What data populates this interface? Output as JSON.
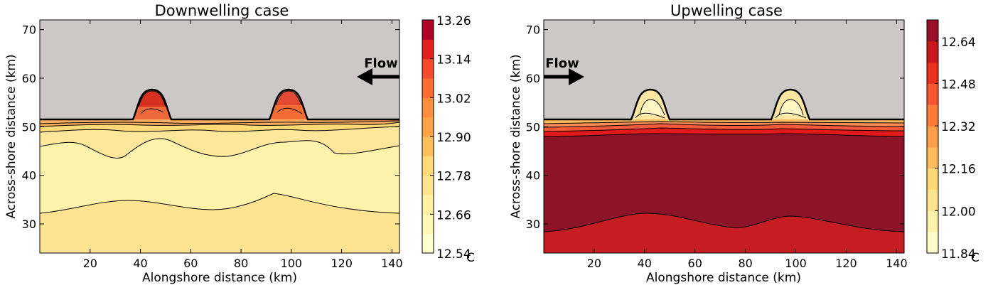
{
  "chart_data": [
    {
      "type": "contour",
      "title": "Downwelling case",
      "xlabel": "Alongshore distance (km)",
      "ylabel": "Across-shore distance (km)",
      "xlim": [
        0,
        143
      ],
      "ylim": [
        24,
        72
      ],
      "xticks": [
        20,
        40,
        60,
        80,
        100,
        120,
        140
      ],
      "yticks": [
        30,
        40,
        50,
        60,
        70
      ],
      "colorbar": {
        "ticks": [
          "12.54",
          "12.66",
          "12.78",
          "12.90",
          "13.02",
          "13.14",
          "13.26"
        ],
        "min": 12.54,
        "max": 13.26,
        "levels": 12,
        "unit": "C"
      },
      "annotation": {
        "text": "Flow",
        "direction": "left"
      },
      "land_color": "#cbc8c7",
      "coastline_y": 51.2,
      "bumps": [
        {
          "center": 43,
          "height": 57.5
        },
        {
          "center": 100,
          "height": 57.5
        }
      ]
    },
    {
      "type": "contour",
      "title": "Upwelling case",
      "xlabel": "Alongshore distance (km)",
      "ylabel": "Across-shore distance (km)",
      "xlim": [
        0,
        143
      ],
      "ylim": [
        24,
        72
      ],
      "xticks": [
        20,
        40,
        60,
        80,
        100,
        120,
        140
      ],
      "yticks": [
        30,
        40,
        50,
        60,
        70
      ],
      "colorbar": {
        "ticks": [
          "11.84",
          "12.00",
          "12.16",
          "12.32",
          "12.48",
          "12.64"
        ],
        "min": 11.84,
        "max": 12.72,
        "levels": 11,
        "unit": "C"
      },
      "annotation": {
        "text": "Flow",
        "direction": "right"
      },
      "land_color": "#cbc8c7",
      "coastline_y": 51.2,
      "bumps": [
        {
          "center": 43,
          "height": 57.5
        },
        {
          "center": 100,
          "height": 57.5
        }
      ]
    }
  ]
}
